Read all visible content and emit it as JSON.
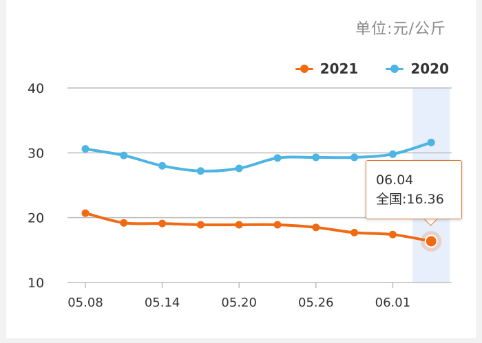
{
  "unit_label": "单位:元/公斤",
  "legend": [
    {
      "label": "2021",
      "color": "#f06a14"
    },
    {
      "label": "2020",
      "color": "#4db4e4"
    }
  ],
  "tooltip": {
    "date": "06.04",
    "text": "全国:16.36"
  },
  "colors": {
    "highlight_band": "#e6effb",
    "grid": "#bdbdbd",
    "axis_text": "#333333"
  },
  "chart_data": {
    "type": "line",
    "x": [
      "05.08",
      "05.11",
      "05.14",
      "05.17",
      "05.20",
      "05.23",
      "05.26",
      "05.29",
      "06.01",
      "06.04"
    ],
    "x_tick_labels": [
      "05.08",
      "05.14",
      "05.20",
      "05.26",
      "06.01"
    ],
    "ylim": [
      10,
      40
    ],
    "y_ticks": [
      10,
      20,
      30,
      40
    ],
    "grid": true,
    "legend_position": "top-right",
    "highlighted_x": "06.04",
    "series": [
      {
        "name": "2021",
        "values": [
          20.7,
          19.2,
          19.1,
          18.9,
          18.9,
          18.9,
          18.5,
          17.7,
          17.4,
          16.36
        ]
      },
      {
        "name": "2020",
        "values": [
          30.6,
          29.6,
          28.0,
          27.2,
          27.6,
          29.2,
          29.3,
          29.3,
          29.8,
          31.6
        ]
      }
    ]
  }
}
